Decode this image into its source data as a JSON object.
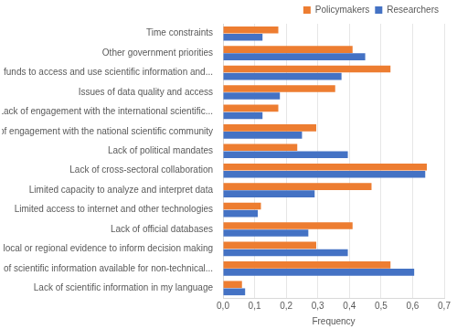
{
  "chart_data": {
    "type": "bar",
    "orientation": "horizontal",
    "x_label": "Frequency",
    "categories": [
      "Time constraints",
      "Other government priorities",
      "Lack of funds to access and use scientific information and...",
      "Issues of data quality and access",
      "Lack of engagement with the international scientific...",
      "Lack of engagement with the national scientific community",
      "Lack of political mandates",
      "Lack of cross-sectoral collaboration",
      "Limited capacity to analyze and interpret data",
      "Limited access to internet and other technologies",
      "Lack of official databases",
      "Lack of local or regional evidence to inform decision making",
      "Lack of scientific information available for non-technical...",
      "Lack of scientific information in my language"
    ],
    "series": [
      {
        "name": "Policymakers",
        "color": "#ed7d31",
        "values": [
          0.175,
          0.41,
          0.53,
          0.355,
          0.175,
          0.295,
          0.235,
          0.645,
          0.47,
          0.12,
          0.41,
          0.295,
          0.53,
          0.06
        ]
      },
      {
        "name": "Researchers",
        "color": "#4472c4",
        "values": [
          0.125,
          0.45,
          0.375,
          0.18,
          0.125,
          0.25,
          0.395,
          0.64,
          0.29,
          0.11,
          0.27,
          0.395,
          0.605,
          0.07
        ]
      }
    ],
    "xlim": [
      0,
      0.7
    ],
    "xticks": [
      {
        "value": 0,
        "label": "0,0"
      },
      {
        "value": 0.1,
        "label": "0,1"
      },
      {
        "value": 0.2,
        "label": "0,2"
      },
      {
        "value": 0.3,
        "label": "0,3"
      },
      {
        "value": 0.4,
        "label": "0,4"
      },
      {
        "value": 0.5,
        "label": "0,5"
      },
      {
        "value": 0.6,
        "label": "0,6"
      },
      {
        "value": 0.7,
        "label": "0,7"
      }
    ],
    "grid": true,
    "legend": "top-right"
  }
}
